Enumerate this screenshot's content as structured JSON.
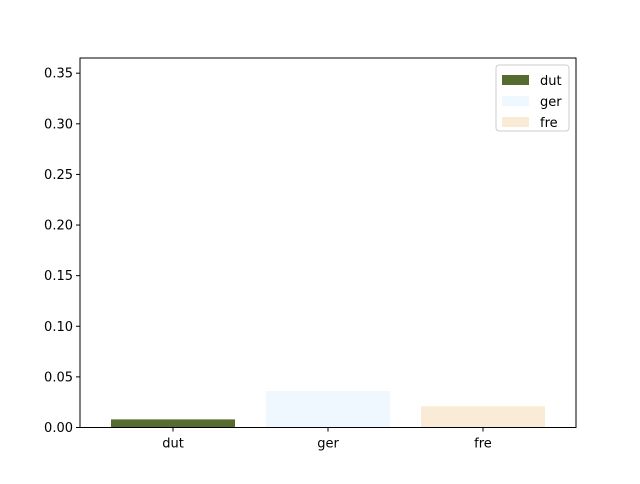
{
  "chart_data": {
    "type": "bar",
    "categories": [
      "dut",
      "ger",
      "fre"
    ],
    "values": [
      0.008,
      0.036,
      0.021
    ],
    "colors": [
      "#556b2f",
      "#f0f8ff",
      "#faebd7"
    ],
    "ylim": [
      0,
      0.365
    ],
    "yticks": [
      0.0,
      0.05,
      0.1,
      0.15,
      0.2,
      0.25,
      0.3,
      0.35
    ],
    "ytick_labels": [
      "0.00",
      "0.05",
      "0.10",
      "0.15",
      "0.20",
      "0.25",
      "0.30",
      "0.35"
    ],
    "legend": {
      "position": "top-right",
      "entries": [
        {
          "label": "dut",
          "color": "#556b2f"
        },
        {
          "label": "ger",
          "color": "#f0f8ff"
        },
        {
          "label": "fre",
          "color": "#faebd7"
        }
      ]
    },
    "grid": false,
    "title": "",
    "xlabel": "",
    "ylabel": ""
  }
}
